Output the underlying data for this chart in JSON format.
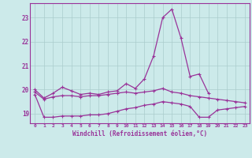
{
  "xlabel": "Windchill (Refroidissement éolien,°C)",
  "background_color": "#cceaea",
  "line_color": "#993399",
  "grid_color": "#aacccc",
  "x": [
    0,
    1,
    2,
    3,
    4,
    5,
    6,
    7,
    8,
    9,
    10,
    11,
    12,
    13,
    14,
    15,
    16,
    17,
    18,
    19,
    20,
    21,
    22,
    23
  ],
  "line1": [
    20.0,
    19.65,
    19.85,
    20.1,
    19.95,
    19.8,
    19.85,
    19.8,
    19.9,
    19.95,
    20.25,
    20.05,
    20.45,
    21.4,
    23.0,
    23.35,
    22.15,
    20.55,
    20.65,
    19.85,
    null,
    null,
    null,
    null
  ],
  "line2": [
    19.9,
    19.6,
    19.7,
    19.75,
    19.75,
    19.7,
    19.75,
    19.75,
    19.8,
    19.85,
    19.9,
    19.85,
    19.9,
    19.95,
    20.05,
    19.9,
    19.85,
    19.75,
    19.7,
    19.65,
    19.6,
    19.55,
    19.5,
    19.45
  ],
  "line3": [
    19.8,
    18.85,
    18.85,
    18.9,
    18.9,
    18.9,
    18.95,
    18.95,
    19.0,
    19.1,
    19.2,
    19.25,
    19.35,
    19.4,
    19.5,
    19.45,
    19.4,
    19.3,
    18.85,
    18.85,
    19.15,
    19.2,
    19.25,
    19.3
  ],
  "ylim": [
    18.6,
    23.6
  ],
  "yticks": [
    19,
    20,
    21,
    22,
    23
  ],
  "xticks": [
    0,
    1,
    2,
    3,
    4,
    5,
    6,
    7,
    8,
    9,
    10,
    11,
    12,
    13,
    14,
    15,
    16,
    17,
    18,
    19,
    20,
    21,
    22,
    23
  ]
}
